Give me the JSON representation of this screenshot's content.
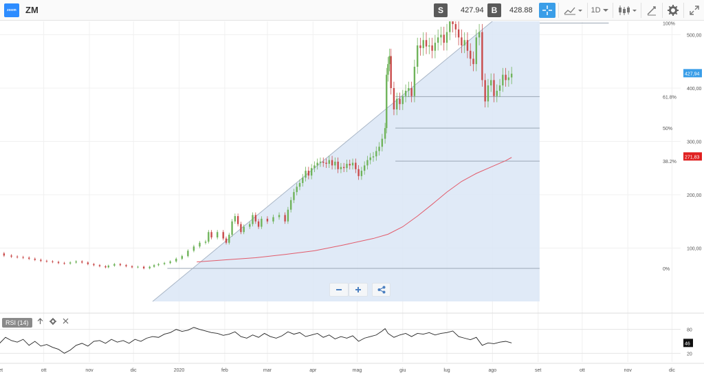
{
  "header": {
    "logo_text": "zoom",
    "symbol": "ZM",
    "sell_label": "S",
    "sell_price": "427.94",
    "buy_label": "B",
    "buy_price": "428.88",
    "interval": "1D",
    "icons": [
      "crosshair-icon",
      "line-chart-icon",
      "candles-icon",
      "draw-icon",
      "gear-icon",
      "expand-icon"
    ]
  },
  "chart_data": {
    "type": "candlestick",
    "y_axis_ticks": [
      "500,00",
      "400,00",
      "300,00",
      "200,00",
      "100,00"
    ],
    "x_axis_ticks": [
      "set",
      "ott",
      "nov",
      "dic",
      "2020",
      "feb",
      "mar",
      "apr",
      "mag",
      "giu",
      "lug",
      "ago",
      "set",
      "ott",
      "nov",
      "dic"
    ],
    "ylim": [
      0,
      540
    ],
    "last_price_label": "427,94",
    "ma_label": "271,83",
    "fibonacci": [
      {
        "label": "100%",
        "value": 522
      },
      {
        "label": "61.8%",
        "value": 384
      },
      {
        "label": "50%",
        "value": 325
      },
      {
        "label": "38.2%",
        "value": 263
      },
      {
        "label": "0%",
        "value": 62
      }
    ],
    "price_series": [
      [
        -4,
        90
      ],
      [
        -1,
        86
      ],
      [
        4,
        84
      ],
      [
        8,
        83
      ],
      [
        12,
        82
      ],
      [
        16,
        80
      ],
      [
        20,
        78
      ],
      [
        24,
        76
      ],
      [
        28,
        75
      ],
      [
        32,
        74
      ],
      [
        36,
        72
      ],
      [
        40,
        71
      ],
      [
        44,
        73
      ],
      [
        48,
        75
      ],
      [
        52,
        73
      ],
      [
        56,
        70
      ],
      [
        60,
        68
      ],
      [
        64,
        66
      ],
      [
        68,
        64
      ],
      [
        70,
        67
      ],
      [
        74,
        70
      ],
      [
        78,
        68
      ],
      [
        82,
        66
      ],
      [
        86,
        64
      ],
      [
        90,
        65
      ],
      [
        94,
        62
      ],
      [
        98,
        65
      ],
      [
        101,
        68
      ],
      [
        104,
        70
      ],
      [
        108,
        72
      ],
      [
        112,
        75
      ],
      [
        116,
        80
      ],
      [
        120,
        85
      ],
      [
        124,
        95
      ],
      [
        128,
        103
      ],
      [
        132,
        110
      ],
      [
        136,
        112
      ],
      [
        138,
        130
      ],
      [
        140,
        120
      ],
      [
        144,
        130
      ],
      [
        148,
        118
      ],
      [
        150,
        110
      ],
      [
        152,
        125
      ],
      [
        154,
        150
      ],
      [
        156,
        160
      ],
      [
        158,
        145
      ],
      [
        160,
        130
      ],
      [
        162,
        140
      ],
      [
        166,
        145
      ],
      [
        168,
        162
      ],
      [
        170,
        150
      ],
      [
        172,
        140
      ],
      [
        174,
        155
      ],
      [
        178,
        150
      ],
      [
        182,
        158
      ],
      [
        186,
        162
      ],
      [
        190,
        150
      ],
      [
        192,
        172
      ],
      [
        194,
        190
      ],
      [
        196,
        205
      ],
      [
        198,
        215
      ],
      [
        200,
        222
      ],
      [
        202,
        232
      ],
      [
        204,
        245
      ],
      [
        206,
        236
      ],
      [
        208,
        250
      ],
      [
        210,
        255
      ],
      [
        212,
        260
      ],
      [
        214,
        262
      ],
      [
        216,
        260
      ],
      [
        218,
        258
      ],
      [
        220,
        265
      ],
      [
        222,
        255
      ],
      [
        224,
        262
      ],
      [
        226,
        248
      ],
      [
        228,
        252
      ],
      [
        230,
        250
      ],
      [
        232,
        258
      ],
      [
        234,
        255
      ],
      [
        236,
        260
      ],
      [
        238,
        248
      ],
      [
        240,
        235
      ],
      [
        242,
        245
      ],
      [
        244,
        255
      ],
      [
        246,
        265
      ],
      [
        248,
        270
      ],
      [
        250,
        272
      ],
      [
        252,
        282
      ],
      [
        254,
        290
      ],
      [
        256,
        305
      ],
      [
        258,
        325
      ],
      [
        259,
        425
      ],
      [
        260,
        445
      ],
      [
        261,
        460
      ],
      [
        262,
        400
      ],
      [
        264,
        360
      ],
      [
        266,
        380
      ],
      [
        268,
        370
      ],
      [
        270,
        385
      ],
      [
        272,
        395
      ],
      [
        274,
        400
      ],
      [
        276,
        385
      ],
      [
        278,
        440
      ],
      [
        280,
        480
      ],
      [
        282,
        475
      ],
      [
        284,
        490
      ],
      [
        286,
        478
      ],
      [
        288,
        480
      ],
      [
        290,
        470
      ],
      [
        292,
        485
      ],
      [
        294,
        495
      ],
      [
        296,
        500
      ],
      [
        298,
        485
      ],
      [
        300,
        505
      ],
      [
        302,
        535
      ],
      [
        304,
        520
      ],
      [
        306,
        510
      ],
      [
        308,
        495
      ],
      [
        310,
        480
      ],
      [
        312,
        490
      ],
      [
        314,
        470
      ],
      [
        316,
        455
      ],
      [
        318,
        445
      ],
      [
        320,
        495
      ],
      [
        322,
        505
      ],
      [
        324,
        415
      ],
      [
        326,
        375
      ],
      [
        328,
        405
      ],
      [
        330,
        415
      ],
      [
        332,
        385
      ],
      [
        334,
        395
      ],
      [
        336,
        405
      ],
      [
        338,
        425
      ],
      [
        340,
        415
      ],
      [
        342,
        420
      ],
      [
        344,
        427
      ]
    ],
    "ma_series": [
      [
        130,
        74
      ],
      [
        150,
        78
      ],
      [
        170,
        82
      ],
      [
        190,
        88
      ],
      [
        210,
        95
      ],
      [
        230,
        106
      ],
      [
        250,
        118
      ],
      [
        260,
        126
      ],
      [
        270,
        140
      ],
      [
        280,
        160
      ],
      [
        290,
        182
      ],
      [
        300,
        205
      ],
      [
        310,
        225
      ],
      [
        320,
        240
      ],
      [
        330,
        252
      ],
      [
        340,
        264
      ],
      [
        344,
        270
      ]
    ],
    "rsi": {
      "label": "RSI (14)",
      "ticks": [
        "80",
        "20"
      ],
      "last_value_label": "46",
      "levels": [
        80,
        20
      ],
      "series": [
        [
          -4,
          45
        ],
        [
          0,
          60
        ],
        [
          4,
          52
        ],
        [
          8,
          48
        ],
        [
          12,
          55
        ],
        [
          16,
          40
        ],
        [
          20,
          50
        ],
        [
          24,
          38
        ],
        [
          28,
          42
        ],
        [
          32,
          35
        ],
        [
          36,
          30
        ],
        [
          40,
          20
        ],
        [
          44,
          28
        ],
        [
          48,
          40
        ],
        [
          52,
          45
        ],
        [
          56,
          38
        ],
        [
          60,
          50
        ],
        [
          64,
          52
        ],
        [
          68,
          45
        ],
        [
          72,
          55
        ],
        [
          76,
          48
        ],
        [
          80,
          52
        ],
        [
          84,
          45
        ],
        [
          88,
          55
        ],
        [
          92,
          50
        ],
        [
          96,
          58
        ],
        [
          100,
          62
        ],
        [
          104,
          60
        ],
        [
          108,
          68
        ],
        [
          112,
          72
        ],
        [
          116,
          80
        ],
        [
          120,
          75
        ],
        [
          124,
          78
        ],
        [
          128,
          85
        ],
        [
          132,
          80
        ],
        [
          136,
          76
        ],
        [
          140,
          72
        ],
        [
          144,
          70
        ],
        [
          148,
          65
        ],
        [
          152,
          68
        ],
        [
          156,
          74
        ],
        [
          160,
          62
        ],
        [
          164,
          58
        ],
        [
          168,
          66
        ],
        [
          172,
          60
        ],
        [
          176,
          70
        ],
        [
          180,
          62
        ],
        [
          184,
          58
        ],
        [
          188,
          64
        ],
        [
          192,
          74
        ],
        [
          196,
          68
        ],
        [
          200,
          72
        ],
        [
          204,
          62
        ],
        [
          208,
          66
        ],
        [
          212,
          70
        ],
        [
          216,
          60
        ],
        [
          220,
          66
        ],
        [
          224,
          56
        ],
        [
          228,
          62
        ],
        [
          232,
          58
        ],
        [
          236,
          64
        ],
        [
          240,
          50
        ],
        [
          244,
          58
        ],
        [
          248,
          62
        ],
        [
          252,
          66
        ],
        [
          256,
          76
        ],
        [
          258,
          82
        ],
        [
          260,
          70
        ],
        [
          264,
          60
        ],
        [
          268,
          66
        ],
        [
          272,
          70
        ],
        [
          276,
          62
        ],
        [
          280,
          70
        ],
        [
          284,
          68
        ],
        [
          288,
          72
        ],
        [
          292,
          66
        ],
        [
          296,
          70
        ],
        [
          300,
          72
        ],
        [
          304,
          76
        ],
        [
          308,
          62
        ],
        [
          312,
          58
        ],
        [
          316,
          54
        ],
        [
          320,
          60
        ],
        [
          324,
          40
        ],
        [
          328,
          46
        ],
        [
          332,
          44
        ],
        [
          336,
          48
        ],
        [
          340,
          50
        ],
        [
          344,
          46
        ]
      ]
    }
  }
}
